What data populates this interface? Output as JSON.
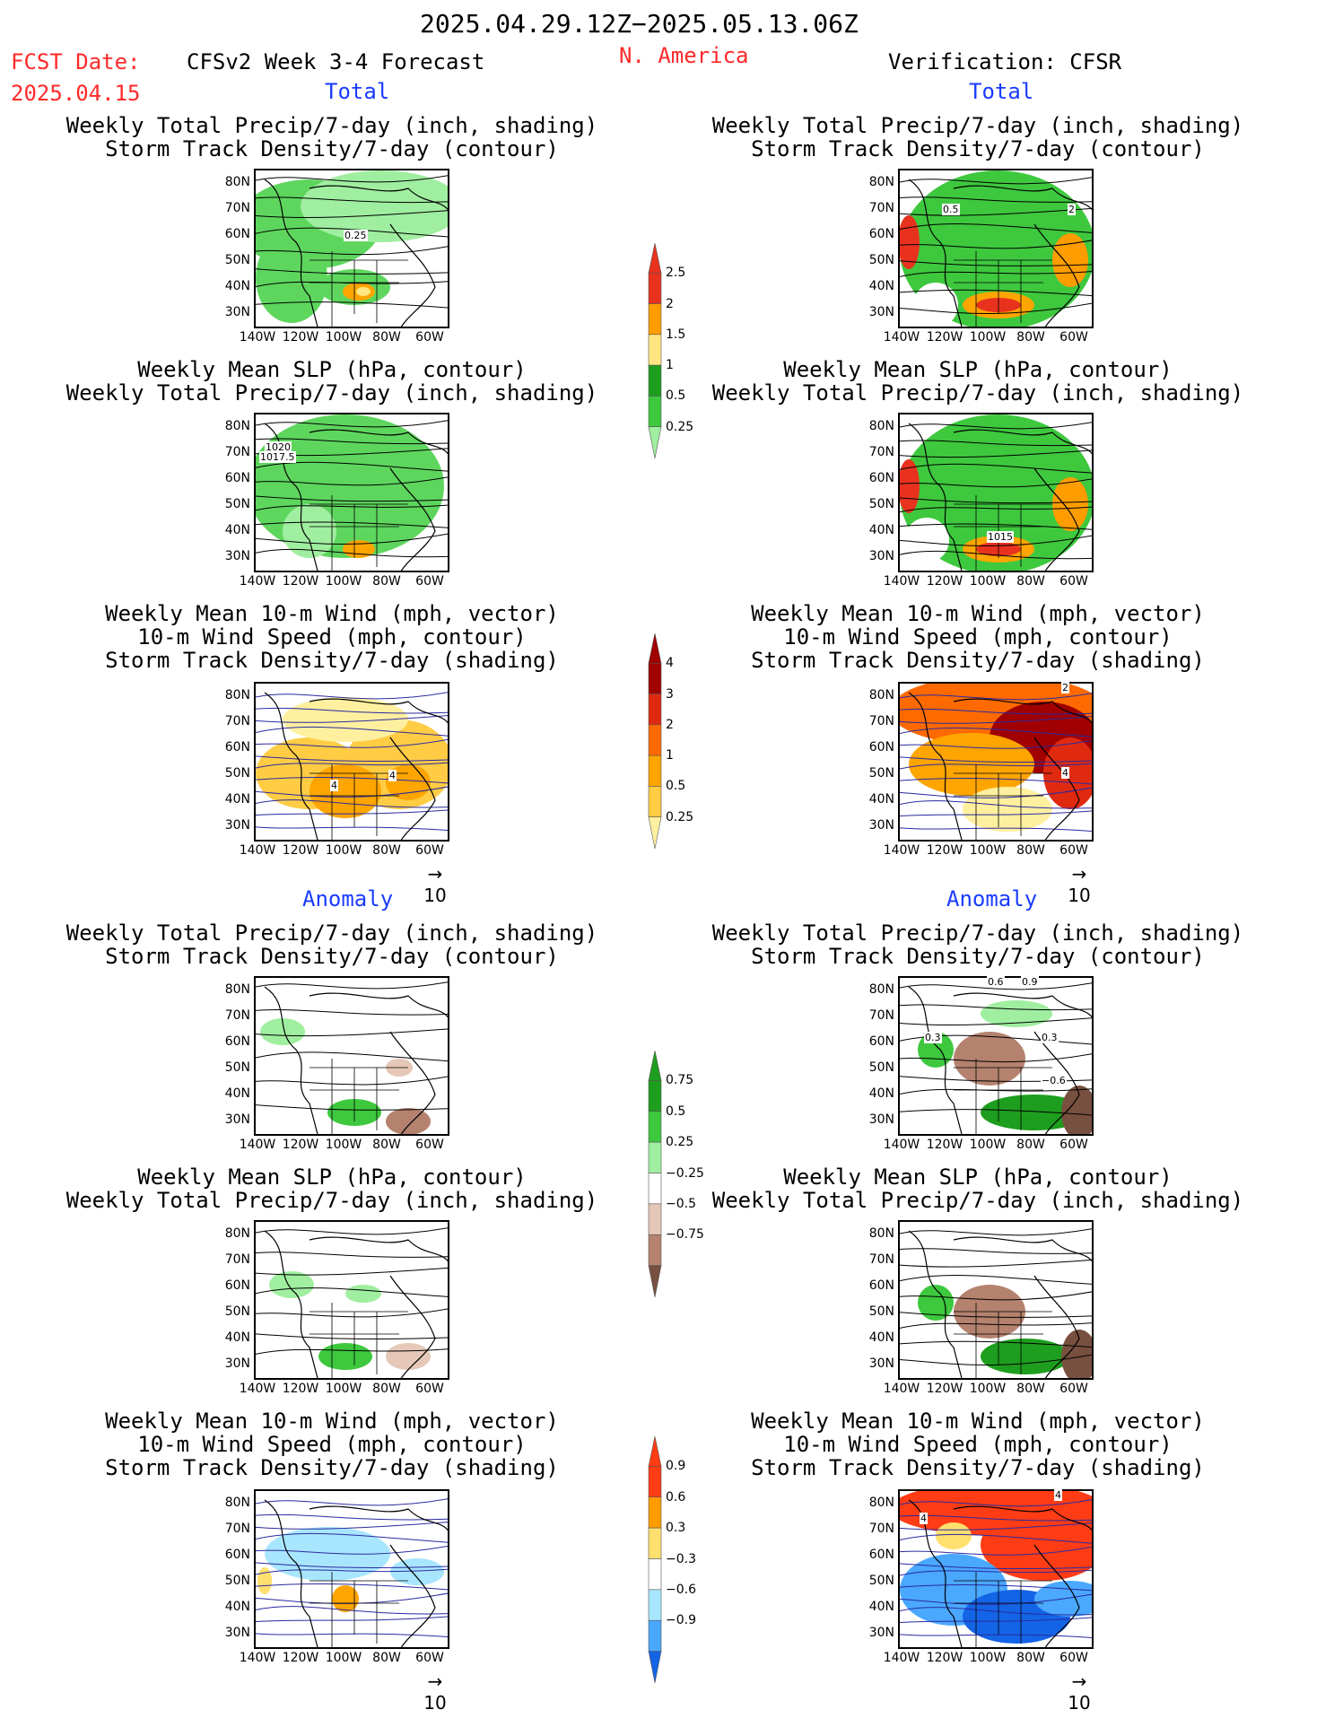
{
  "header": {
    "period": "2025.04.29.12Z−2025.05.13.06Z",
    "fcst_label": "FCST Date:",
    "fcst_date": "2025.04.15",
    "model": "CFSv2 Week 3-4 Forecast",
    "region": "N. America",
    "verification": "Verification: CFSR"
  },
  "sections": {
    "total": "Total",
    "anomaly": "Anomaly"
  },
  "titles": {
    "precip_storm": [
      "Weekly Total Precip/7-day (inch, shading)",
      "Storm Track Density/7-day (contour)"
    ],
    "slp_precip": [
      "Weekly Mean SLP (hPa, contour)",
      "Weekly Total Precip/7-day (inch, shading)"
    ],
    "wind": [
      "Weekly Mean 10-m Wind (mph, vector)",
      "10-m Wind Speed (mph, contour)",
      "Storm Track Density/7-day (shading)"
    ]
  },
  "axes": {
    "lat": [
      "80N",
      "70N",
      "60N",
      "50N",
      "40N",
      "30N"
    ],
    "lon": [
      "140W",
      "120W",
      "100W",
      "80W",
      "60W"
    ]
  },
  "vector_ref": "10",
  "colorbars": {
    "precip_total": {
      "labels": [
        "2.5",
        "2",
        "1.5",
        "1",
        "0.5",
        "0.25"
      ],
      "colors": [
        "#e8321e",
        "#ff9d00",
        "#ffe680",
        "#1e9e1e",
        "#3ec83e",
        "#a0eea0"
      ]
    },
    "storm_total": {
      "labels": [
        "4",
        "3",
        "2",
        "1",
        "0.5",
        "0.25"
      ],
      "colors": [
        "#a00000",
        "#e02a10",
        "#ff6a00",
        "#ffa500",
        "#ffcc44",
        "#fff0a0"
      ]
    },
    "precip_anom": {
      "labels": [
        "0.75",
        "0.5",
        "0.25",
        "−0.25",
        "−0.5",
        "−0.75"
      ],
      "colors": [
        "#1e9e1e",
        "#3ec83e",
        "#a0eea0",
        "#ffffff",
        "#e6c8b8",
        "#b4826e",
        "#785040"
      ]
    },
    "storm_anom": {
      "labels": [
        "0.9",
        "0.6",
        "0.3",
        "−0.3",
        "−0.6",
        "−0.9"
      ],
      "colors": [
        "#ff3c14",
        "#ff9d00",
        "#ffe06e",
        "#ffffff",
        "#a8e6ff",
        "#4aa8ff",
        "#1464e6"
      ]
    }
  },
  "contour_labels": {
    "l1": "0.25",
    "r1a": "0.5",
    "r1b": "2",
    "l2a": "1020",
    "l2b": "1017.5",
    "r2": "1015",
    "l3": "4",
    "l3b": "4",
    "r3a": "2",
    "r3b": "4",
    "r4a": "0.6",
    "r4b": "0.9",
    "r4c": "0.3",
    "r4d": "0.3",
    "r4e": "−0.6",
    "r6a": "4",
    "r6b": "4"
  }
}
